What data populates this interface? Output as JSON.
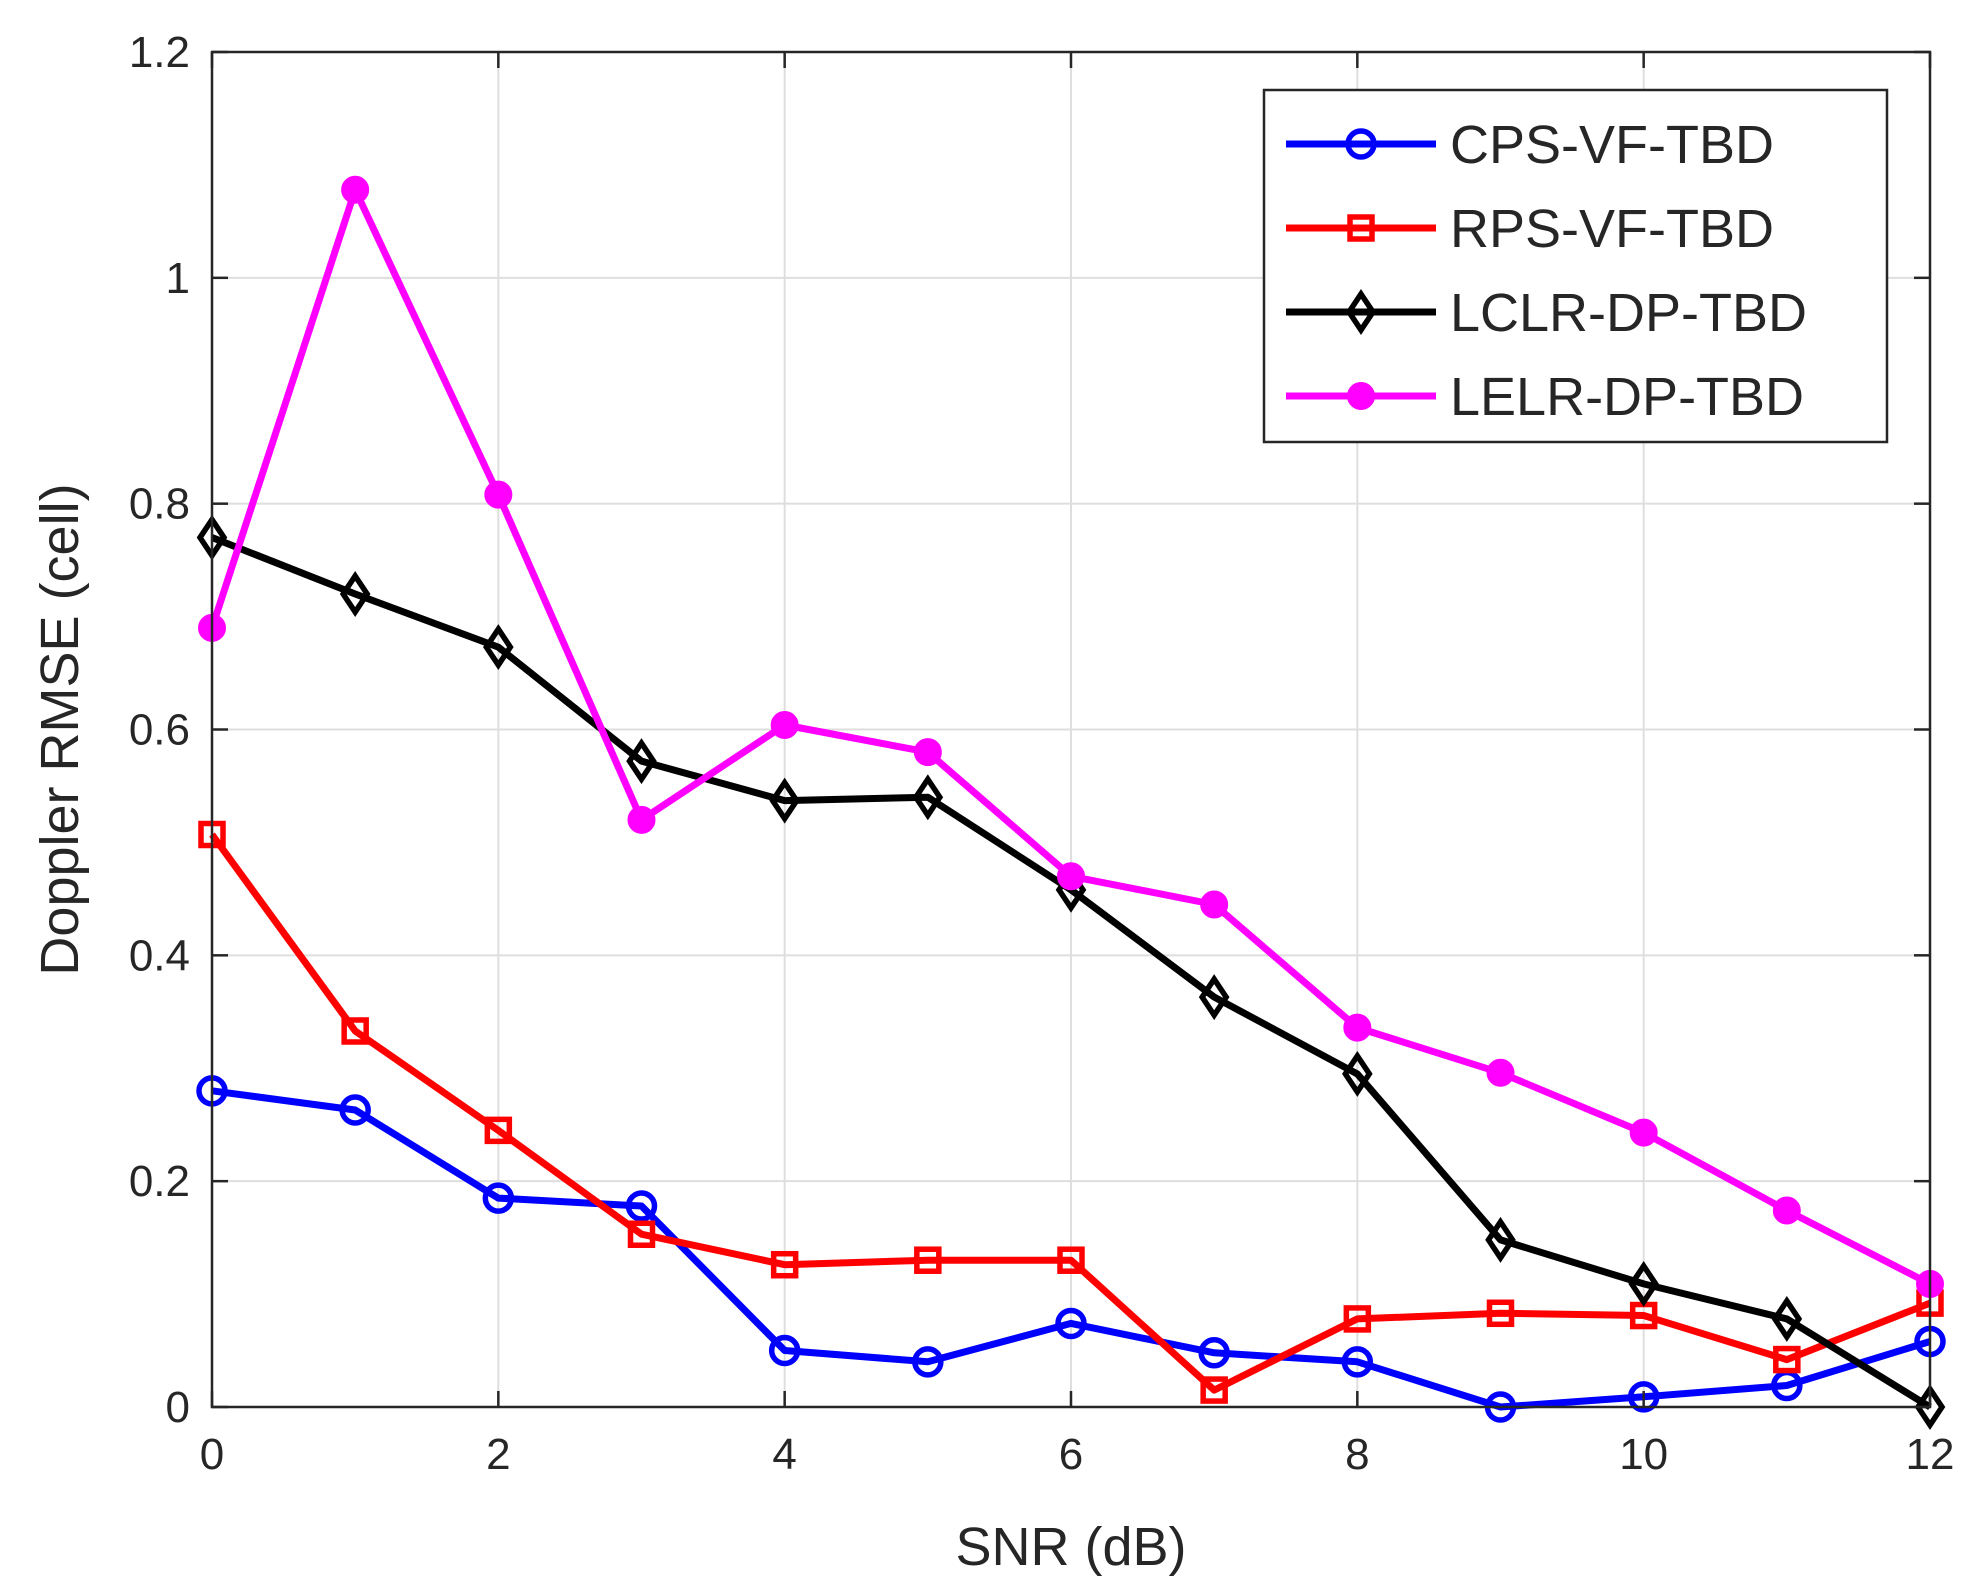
{
  "chart_data": {
    "type": "line",
    "xlabel": "SNR (dB)",
    "ylabel": "Doppler RMSE (cell)",
    "xlim": [
      0,
      12
    ],
    "ylim": [
      0,
      1.2
    ],
    "xticks": [
      0,
      2,
      4,
      6,
      8,
      10,
      12
    ],
    "yticks": [
      0,
      0.2,
      0.4,
      0.6,
      0.8,
      1,
      1.2
    ],
    "xtick_labels": [
      "0",
      "2",
      "4",
      "6",
      "8",
      "10",
      "12"
    ],
    "ytick_labels": [
      "0",
      "0.2",
      "0.4",
      "0.6",
      "0.8",
      "1",
      "1.2"
    ],
    "grid": true,
    "legend_position": "top-right",
    "x": [
      0,
      1,
      2,
      3,
      4,
      5,
      6,
      7,
      8,
      9,
      10,
      11,
      12
    ],
    "series": [
      {
        "name": "CPS-VF-TBD",
        "color": "#0000ff",
        "marker": "circle",
        "values": [
          0.28,
          0.263,
          0.185,
          0.178,
          0.05,
          0.04,
          0.074,
          0.048,
          0.04,
          0.0,
          0.009,
          0.019,
          0.058
        ]
      },
      {
        "name": "RPS-VF-TBD",
        "color": "#ff0000",
        "marker": "square",
        "values": [
          0.507,
          0.333,
          0.245,
          0.153,
          0.126,
          0.13,
          0.13,
          0.015,
          0.078,
          0.083,
          0.081,
          0.042,
          0.092
        ]
      },
      {
        "name": "LCLR-DP-TBD",
        "color": "#000000",
        "marker": "diamond",
        "values": [
          0.77,
          0.72,
          0.673,
          0.572,
          0.537,
          0.54,
          0.458,
          0.363,
          0.295,
          0.148,
          0.109,
          0.078,
          0.0
        ]
      },
      {
        "name": "LELR-DP-TBD",
        "color": "#ff00ff",
        "marker": "filled-circle",
        "values": [
          0.69,
          1.078,
          0.808,
          0.52,
          0.604,
          0.58,
          0.47,
          0.445,
          0.336,
          0.296,
          0.243,
          0.174,
          0.109
        ]
      }
    ]
  }
}
